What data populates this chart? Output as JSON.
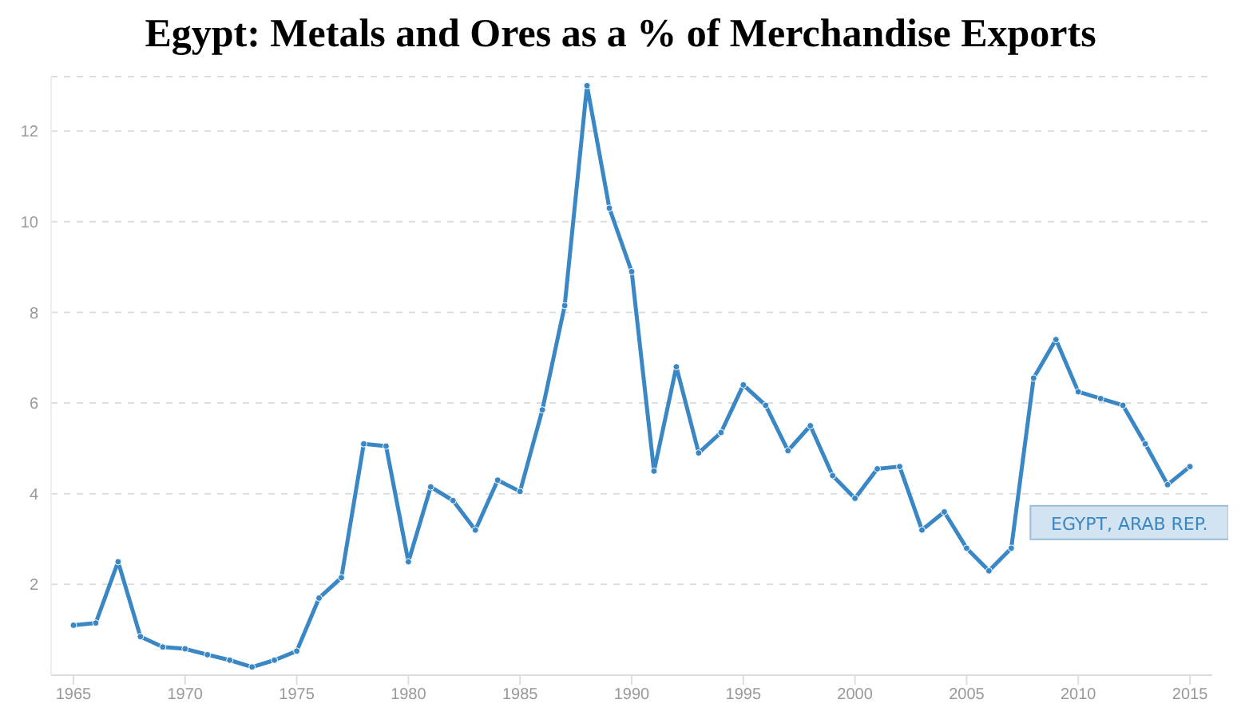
{
  "chart_data": {
    "type": "line",
    "title": "Egypt: Metals and Ores as a % of Merchandise Exports",
    "x": [
      1965,
      1966,
      1967,
      1968,
      1969,
      1970,
      1971,
      1972,
      1973,
      1974,
      1975,
      1976,
      1977,
      1978,
      1979,
      1980,
      1981,
      1982,
      1983,
      1984,
      1985,
      1986,
      1987,
      1988,
      1989,
      1990,
      1991,
      1992,
      1993,
      1994,
      1995,
      1996,
      1997,
      1998,
      1999,
      2000,
      2001,
      2002,
      2003,
      2004,
      2005,
      2006,
      2007,
      2008,
      2009,
      2010,
      2011,
      2012,
      2013,
      2014,
      2015
    ],
    "series": [
      {
        "name": "EGYPT, ARAB REP.",
        "color": "#3a87c6",
        "values": [
          1.1,
          1.15,
          2.5,
          0.85,
          0.62,
          0.58,
          0.45,
          0.33,
          0.18,
          0.33,
          0.53,
          1.7,
          2.15,
          5.1,
          5.05,
          2.5,
          4.15,
          3.85,
          3.2,
          4.3,
          4.05,
          5.85,
          8.15,
          13.0,
          10.3,
          8.9,
          4.5,
          6.8,
          4.9,
          5.35,
          6.4,
          5.95,
          4.95,
          5.5,
          4.4,
          3.9,
          4.55,
          4.6,
          3.2,
          3.6,
          2.8,
          2.3,
          2.8,
          6.55,
          7.4,
          6.25,
          6.1,
          5.95,
          5.1,
          4.2,
          4.6
        ]
      }
    ],
    "xlim": [
      1964,
      2016
    ],
    "xticks": [
      1965,
      1970,
      1975,
      1980,
      1985,
      1990,
      1995,
      2000,
      2005,
      2010,
      2015
    ],
    "ylim": [
      0,
      13.2
    ],
    "yticks": [
      2,
      4,
      6,
      8,
      10,
      12
    ],
    "grid": "y",
    "marker": "circle",
    "line_style": "solid"
  }
}
